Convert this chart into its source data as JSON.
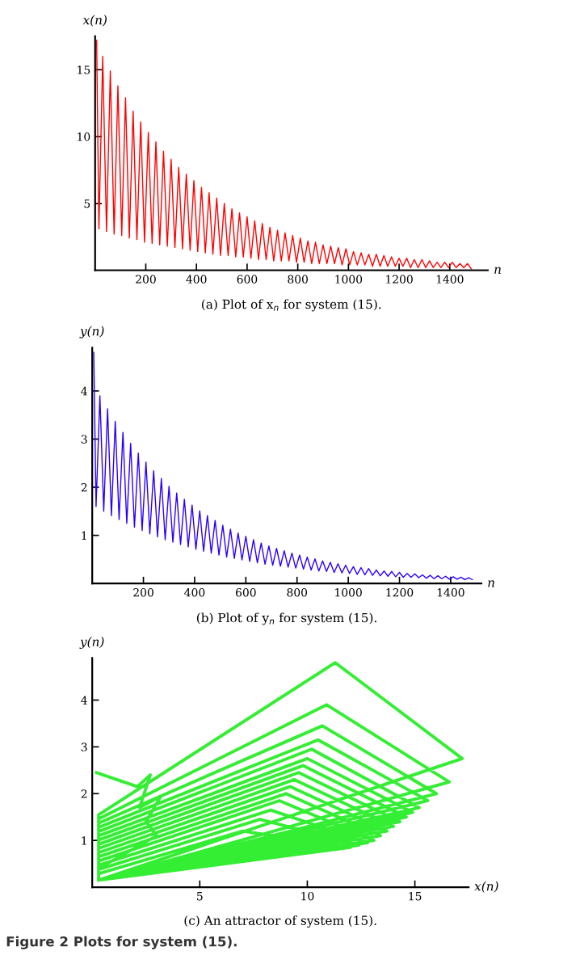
{
  "chart_data": [
    {
      "type": "line",
      "title": "(a) Plot of x$_{n}$ for system (15).",
      "xlabel": "n",
      "ylabel": "x(n)",
      "x": [
        6,
        15,
        30,
        45,
        60,
        75,
        90,
        105,
        120,
        135,
        150,
        165,
        180,
        195,
        210,
        225,
        240,
        255,
        270,
        285,
        300,
        315,
        330,
        345,
        360,
        375,
        390,
        405,
        420,
        435,
        450,
        465,
        480,
        495,
        510,
        525,
        540,
        555,
        570,
        585,
        600,
        615,
        630,
        645,
        660,
        675,
        690,
        705,
        720,
        735,
        750,
        765,
        780,
        795,
        810,
        825,
        840,
        855,
        870,
        885,
        900,
        915,
        930,
        945,
        960,
        975,
        990,
        1005,
        1020,
        1035,
        1050,
        1065,
        1080,
        1095,
        1110,
        1125,
        1140,
        1155,
        1170,
        1185,
        1200,
        1215,
        1230,
        1245,
        1260,
        1275,
        1290,
        1305,
        1320,
        1335,
        1350,
        1365,
        1380,
        1395,
        1410,
        1425,
        1440,
        1455,
        1470,
        1485
      ],
      "series": [
        {
          "color": "#ff0000",
          "values": [
            17.2,
            3.1,
            16.0,
            2.9,
            14.9,
            2.7,
            13.8,
            2.6,
            12.9,
            2.4,
            11.9,
            2.3,
            11.1,
            2.1,
            10.3,
            2.0,
            9.6,
            1.9,
            8.9,
            1.8,
            8.3,
            1.7,
            7.7,
            1.6,
            7.2,
            1.5,
            6.7,
            1.4,
            6.2,
            1.3,
            5.8,
            1.2,
            5.4,
            1.1,
            5.0,
            1.1,
            4.6,
            1.0,
            4.3,
            1.0,
            4.0,
            0.9,
            3.7,
            0.8,
            3.5,
            0.8,
            3.2,
            0.7,
            3.0,
            0.7,
            2.8,
            0.7,
            2.6,
            0.6,
            2.4,
            0.6,
            2.2,
            0.5,
            2.1,
            0.5,
            1.9,
            0.5,
            1.8,
            0.5,
            1.7,
            0.4,
            1.6,
            0.4,
            1.4,
            0.4,
            1.3,
            0.4,
            1.2,
            0.3,
            1.2,
            0.3,
            1.1,
            0.3,
            1.0,
            0.3,
            0.9,
            0.3,
            0.9,
            0.2,
            0.8,
            0.2,
            0.8,
            0.2,
            0.7,
            0.2,
            0.6,
            0.2,
            0.6,
            0.2,
            0.6,
            0.2,
            0.5,
            0.2,
            0.5,
            0.1
          ]
        }
      ],
      "xlim": [
        0,
        1550
      ],
      "ylim": [
        0,
        17.5
      ],
      "xticks": [
        200,
        400,
        600,
        800,
        1000,
        1200,
        1400
      ],
      "yticks": [
        5,
        10,
        15
      ]
    },
    {
      "type": "line",
      "title": "(b) Plot of y$_{n}$ for system (15).",
      "xlabel": "n",
      "ylabel": "y(n)",
      "x": [
        6,
        15,
        30,
        45,
        60,
        75,
        90,
        105,
        120,
        135,
        150,
        165,
        180,
        195,
        210,
        225,
        240,
        255,
        270,
        285,
        300,
        315,
        330,
        345,
        360,
        375,
        390,
        405,
        420,
        435,
        450,
        465,
        480,
        495,
        510,
        525,
        540,
        555,
        570,
        585,
        600,
        615,
        630,
        645,
        660,
        675,
        690,
        705,
        720,
        735,
        750,
        765,
        780,
        795,
        810,
        825,
        840,
        855,
        870,
        885,
        900,
        915,
        930,
        945,
        960,
        975,
        990,
        1005,
        1020,
        1035,
        1050,
        1065,
        1080,
        1095,
        1110,
        1125,
        1140,
        1155,
        1170,
        1185,
        1200,
        1215,
        1230,
        1245,
        1260,
        1275,
        1290,
        1305,
        1320,
        1335,
        1350,
        1365,
        1380,
        1395,
        1410,
        1425,
        1440,
        1455,
        1470,
        1485
      ],
      "series": [
        {
          "color": "#2a00ff",
          "values": [
            4.8,
            1.6,
            3.9,
            1.5,
            3.63,
            1.41,
            3.37,
            1.33,
            3.14,
            1.25,
            2.91,
            1.17,
            2.71,
            1.1,
            2.52,
            1.03,
            2.34,
            0.97,
            2.18,
            0.91,
            2.02,
            0.86,
            1.88,
            0.81,
            1.75,
            0.76,
            1.63,
            0.71,
            1.51,
            0.67,
            1.41,
            0.63,
            1.31,
            0.59,
            1.21,
            0.55,
            1.13,
            0.52,
            1.05,
            0.49,
            0.98,
            0.46,
            0.91,
            0.43,
            0.84,
            0.4,
            0.78,
            0.38,
            0.73,
            0.36,
            0.68,
            0.34,
            0.63,
            0.32,
            0.59,
            0.3,
            0.55,
            0.28,
            0.51,
            0.26,
            0.47,
            0.25,
            0.44,
            0.23,
            0.41,
            0.22,
            0.38,
            0.21,
            0.35,
            0.19,
            0.33,
            0.18,
            0.31,
            0.17,
            0.28,
            0.16,
            0.26,
            0.15,
            0.25,
            0.14,
            0.23,
            0.13,
            0.21,
            0.13,
            0.2,
            0.12,
            0.18,
            0.11,
            0.17,
            0.1,
            0.16,
            0.1,
            0.15,
            0.09,
            0.14,
            0.09,
            0.13,
            0.08,
            0.12,
            0.08
          ]
        }
      ],
      "xlim": [
        0,
        1520
      ],
      "ylim": [
        0,
        4.9
      ],
      "xticks": [
        200,
        400,
        600,
        800,
        1000,
        1200,
        1400
      ],
      "yticks": [
        1,
        2,
        3,
        4
      ]
    },
    {
      "type": "line",
      "title": "(c) An attractor of system (15).",
      "xlabel": "x(n)",
      "ylabel": "y(n)",
      "annotations": [
        "Figure 2 Plots for system (15)."
      ],
      "x": [
        0.2,
        2.1,
        2.7,
        2.2,
        3.2,
        2.5,
        3.0,
        0.3,
        0.3,
        11.3,
        17.2,
        0.3,
        0.3,
        10.9,
        16.6,
        0.3,
        0.3,
        10.7,
        16.0,
        0.3,
        0.3,
        10.5,
        15.6,
        0.3,
        0.3,
        10.2,
        15.2,
        0.3,
        0.3,
        10.0,
        14.9,
        0.3,
        0.3,
        9.8,
        14.6,
        0.3,
        0.3,
        9.6,
        14.3,
        0.3,
        0.3,
        9.4,
        14.0,
        0.3,
        0.3,
        9.2,
        13.7,
        0.3,
        0.3,
        9.0,
        13.4,
        0.3,
        0.3,
        8.7,
        13.1,
        0.3,
        0.3,
        8.3,
        12.8,
        0.3,
        0.3,
        7.8,
        12.4,
        0.3,
        0.3,
        7.0,
        12.0,
        0.3
      ],
      "series": [
        {
          "color": "#33ee33",
          "values": [
            2.45,
            2.15,
            2.4,
            1.7,
            1.95,
            1.4,
            1.1,
            0.4,
            1.55,
            4.8,
            2.75,
            0.15,
            1.46,
            3.9,
            2.25,
            0.15,
            1.37,
            3.45,
            2.0,
            0.15,
            1.28,
            3.15,
            1.85,
            0.15,
            1.19,
            2.95,
            1.7,
            0.15,
            1.1,
            2.75,
            1.6,
            0.15,
            1.01,
            2.6,
            1.5,
            0.15,
            0.92,
            2.45,
            1.4,
            0.15,
            0.83,
            2.3,
            1.3,
            0.15,
            0.74,
            2.15,
            1.2,
            0.15,
            0.65,
            2.0,
            1.1,
            0.15,
            0.56,
            1.85,
            1.0,
            0.15,
            0.47,
            1.65,
            0.95,
            0.15,
            0.38,
            1.45,
            0.9,
            0.15,
            0.29,
            1.2,
            0.85,
            0.15
          ]
        }
      ],
      "xlim": [
        0,
        17.5
      ],
      "ylim": [
        0,
        4.9
      ],
      "xticks": [
        5,
        10,
        15
      ],
      "yticks": [
        1,
        2,
        3,
        4
      ]
    }
  ]
}
